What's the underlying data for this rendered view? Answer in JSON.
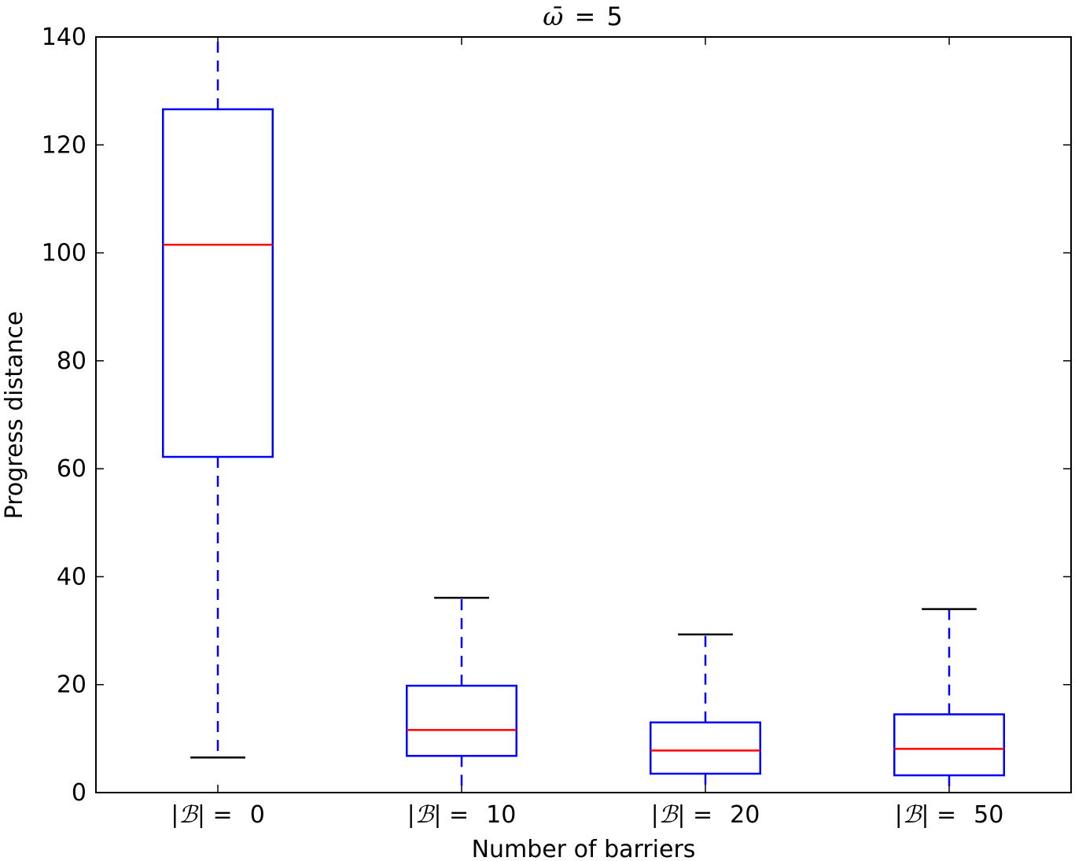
{
  "chart_data": {
    "type": "box",
    "title": "ω̄ = 5",
    "title_parts": {
      "symbol": "ω̄",
      "eq": "=",
      "value": "5"
    },
    "xlabel": "Number of barriers",
    "ylabel": "Progress distance",
    "ylim": [
      0,
      140
    ],
    "yticks": [
      0,
      20,
      40,
      60,
      80,
      100,
      120,
      140
    ],
    "grid": false,
    "categories": [
      {
        "prefix": "|ℬ| =",
        "value": "0"
      },
      {
        "prefix": "|ℬ| =",
        "value": "10"
      },
      {
        "prefix": "|ℬ| =",
        "value": "20"
      },
      {
        "prefix": "|ℬ| =",
        "value": "50"
      }
    ],
    "boxes": [
      {
        "whisker_low": 6.5,
        "q1": 62.2,
        "median": 101.5,
        "q3": 126.6,
        "whisker_high": 140,
        "show_upper_cap": false
      },
      {
        "whisker_low": 0,
        "q1": 6.8,
        "median": 11.6,
        "q3": 19.8,
        "whisker_high": 36.1,
        "show_upper_cap": true
      },
      {
        "whisker_low": 0,
        "q1": 3.5,
        "median": 7.8,
        "q3": 13.0,
        "whisker_high": 29.3,
        "show_upper_cap": true
      },
      {
        "whisker_low": 0,
        "q1": 3.2,
        "median": 8.1,
        "q3": 14.5,
        "whisker_high": 34.0,
        "show_upper_cap": true
      }
    ],
    "colors": {
      "box": "#0000ff",
      "median": "#ff0000",
      "cap": "#000000",
      "axes": "#000000"
    }
  }
}
